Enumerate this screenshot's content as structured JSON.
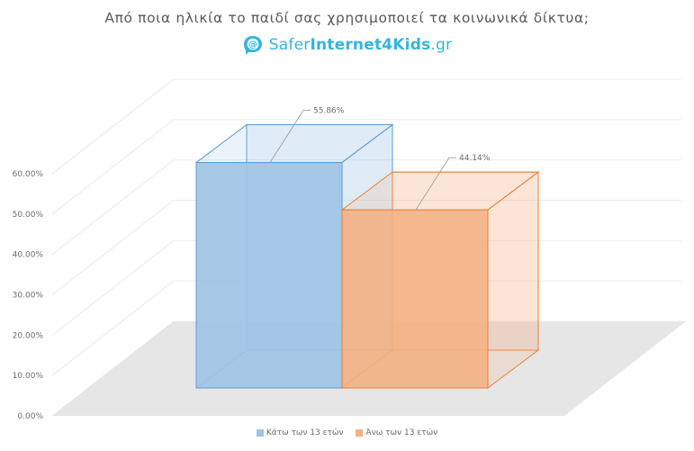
{
  "chart_data": {
    "type": "bar",
    "title": "Από ποια ηλικία το παιδί σας χρησιμοποιεί τα κοινωνικά δίκτυα;",
    "categories": [
      "Κάτω των 13 ετών",
      "Άνω των 13 ετών"
    ],
    "values": [
      55.86,
      44.14
    ],
    "data_labels": [
      "55.86%",
      "44.14%"
    ],
    "colors": [
      "#9dc3e6",
      "#f4b183"
    ],
    "edge_colors": [
      "#5b9bd5",
      "#ed7d31"
    ],
    "ylim": [
      0,
      60
    ],
    "yticks": [
      "0.00%",
      "10.00%",
      "20.00%",
      "30.00%",
      "40.00%",
      "50.00%",
      "60.00%"
    ],
    "legend": [
      "Κάτω των 13 ετών",
      "Άνω των 13 ετών"
    ],
    "legend_position": "bottom",
    "style": "3d-column",
    "grid": true
  },
  "logo": {
    "text_light": "Safer",
    "text_bold": "Internet4Kids",
    "text_suffix": ".gr",
    "icon": "at-sign-icon"
  }
}
